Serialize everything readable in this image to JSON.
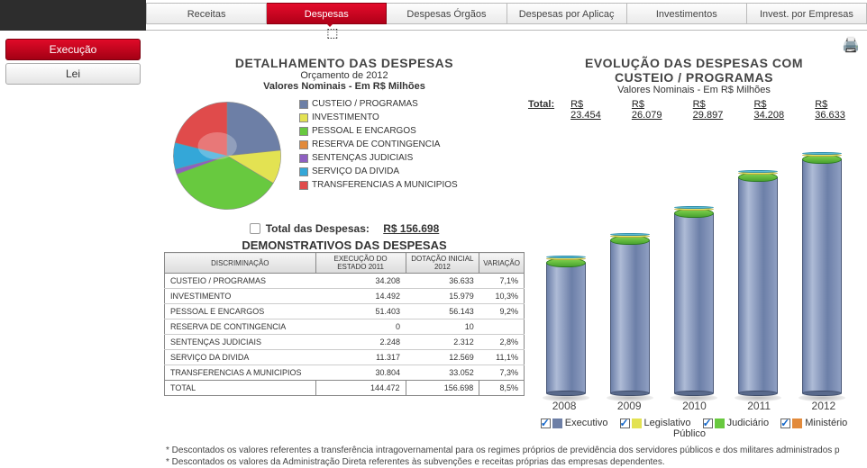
{
  "tabs": [
    {
      "label": "Receitas"
    },
    {
      "label": "Despesas",
      "active": true
    },
    {
      "label": "Despesas Órgãos"
    },
    {
      "label": "Despesas por Aplicaç"
    },
    {
      "label": "Investimentos"
    },
    {
      "label": "Invest. por Empresas"
    }
  ],
  "sidebar": [
    {
      "label": "Execução",
      "style": "red"
    },
    {
      "label": "Lei",
      "style": "gray"
    }
  ],
  "left": {
    "title": "DETALHAMENTO DAS DESPESAS",
    "sub1": "Orçamento de 2012",
    "sub2": "Valores Nominais - Em R$ Milhões",
    "pie": {
      "slices": [
        {
          "label": "CUSTEIO / PROGRAMAS",
          "color": "#6d7fa6",
          "value": 36633
        },
        {
          "label": "INVESTIMENTO",
          "color": "#e3e252",
          "value": 15979
        },
        {
          "label": "PESSOAL E ENCARGOS",
          "color": "#68c93f",
          "value": 56143
        },
        {
          "label": "RESERVA DE CONTINGENCIA",
          "color": "#e28a3b",
          "value": 10
        },
        {
          "label": "SENTENÇAS JUDICIAIS",
          "color": "#8e5fc1",
          "value": 2312
        },
        {
          "label": "SERVIÇO DA DIVIDA",
          "color": "#34a7d8",
          "value": 12569
        },
        {
          "label": "TRANSFERENCIAS A MUNICIPIOS",
          "color": "#e04b4b",
          "value": 33052
        }
      ]
    },
    "total_label": "Total das Despesas:",
    "total_value": "R$ 156.698",
    "table_title": "DEMONSTRATIVOS DAS DESPESAS",
    "columns": [
      "DISCRIMINAÇÃO",
      "EXECUÇÃO DO ESTADO 2011",
      "DOTAÇÃO INICIAL 2012",
      "VARIAÇÃO"
    ],
    "rows": [
      [
        "CUSTEIO / PROGRAMAS",
        "34.208",
        "36.633",
        "7,1%"
      ],
      [
        "INVESTIMENTO",
        "14.492",
        "15.979",
        "10,3%"
      ],
      [
        "PESSOAL E ENCARGOS",
        "51.403",
        "56.143",
        "9,2%"
      ],
      [
        "RESERVA DE CONTINGENCIA",
        "0",
        "10",
        ""
      ],
      [
        "SENTENÇAS JUDICIAIS",
        "2.248",
        "2.312",
        "2,8%"
      ],
      [
        "SERVIÇO DA DIVIDA",
        "11.317",
        "12.569",
        "11,1%"
      ],
      [
        "TRANSFERENCIAS A MUNICIPIOS",
        "30.804",
        "33.052",
        "7,3%"
      ]
    ],
    "total_row": [
      "TOTAL",
      "144.472",
      "156.698",
      "8,5%"
    ]
  },
  "right": {
    "title": "EVOLUÇÃO DAS DESPESAS COM",
    "title2": "CUSTEIO / PROGRAMAS",
    "sub": "Valores Nominais - Em R$ Milhões",
    "totals_label": "Total:",
    "year_totals": [
      "R$ 23.454",
      "R$ 26.079",
      "R$ 29.897",
      "R$ 34.208",
      "R$ 36.633"
    ],
    "bars": {
      "type": "bar",
      "colors": {
        "body": "#6c7fa8",
        "cap_green": "#62c23a",
        "cap_yellow": "#e9e46a",
        "cap_blue": "#5dbbd4"
      },
      "years": [
        "2008",
        "2009",
        "2010",
        "2011",
        "2012"
      ],
      "heights": [
        145,
        170,
        200,
        240,
        260
      ]
    },
    "categories": [
      {
        "label": "Executivo",
        "color": "#6d7fa6",
        "checked": true
      },
      {
        "label": "Legislativo",
        "color": "#e3e252",
        "checked": true
      },
      {
        "label": "Judiciário",
        "color": "#68c93f",
        "checked": true
      },
      {
        "label": "Ministério Público",
        "color": "#e28a3b",
        "checked": true
      }
    ]
  },
  "footnotes": [
    "* Descontados os valores referentes a transferência intragovernamental para os regimes próprios de previdência dos servidores públicos e dos militares administrados p",
    "* Descontados os valores da Administração Direta referentes às subvenções e receitas próprias das empresas dependentes."
  ]
}
